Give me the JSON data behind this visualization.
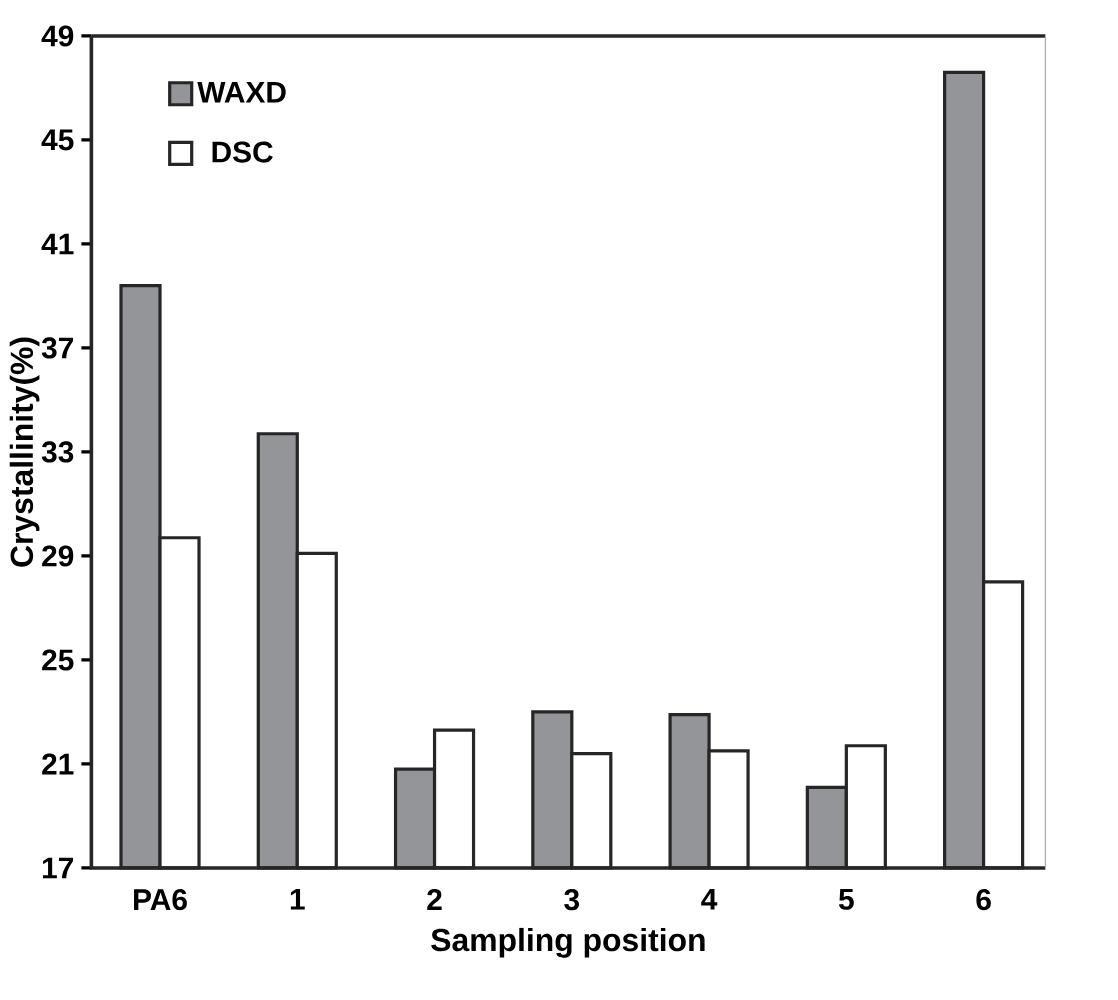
{
  "chart_data": {
    "type": "bar",
    "xlabel": "Sampling position",
    "ylabel": "Crystallinity(%)",
    "categories": [
      "PA6",
      "1",
      "2",
      "3",
      "4",
      "5",
      "6"
    ],
    "series": [
      {
        "name": "WAXD",
        "color": "#939598",
        "values": [
          39.4,
          33.7,
          20.8,
          23.0,
          22.9,
          20.1,
          47.6
        ]
      },
      {
        "name": "DSC",
        "color": "#ffffff",
        "values": [
          29.7,
          29.1,
          22.3,
          21.4,
          21.5,
          21.7,
          28.0
        ]
      }
    ],
    "ylim": [
      17,
      49
    ],
    "yticks": [
      17,
      21,
      25,
      29,
      33,
      37,
      41,
      45,
      49
    ],
    "legend": "top left"
  }
}
